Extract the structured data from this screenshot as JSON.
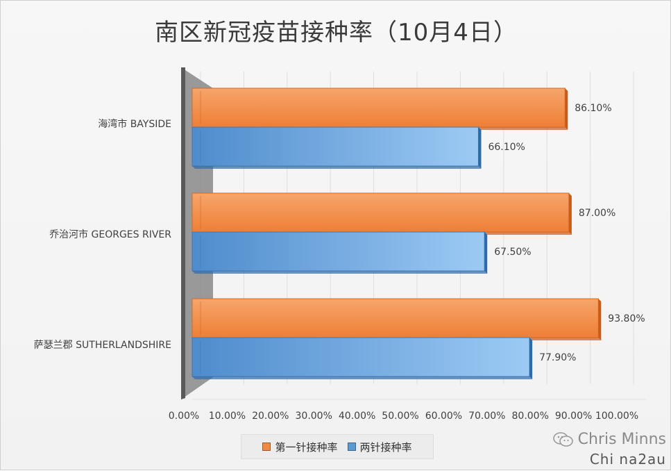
{
  "chart_data": {
    "type": "bar",
    "orientation": "horizontal",
    "title": "南区新冠疫苗接种率（10月4日）",
    "categories": [
      "海湾市 BAYSIDE",
      "乔治河市 GEORGES RIVER",
      "萨瑟兰郡 SUTHERLANDSHIRE"
    ],
    "series": [
      {
        "name": "第一针接种率",
        "values": [
          86.1,
          87.0,
          93.8
        ],
        "labels": [
          "86.10%",
          "87.00%",
          "93.80%"
        ],
        "color": "#f08a43"
      },
      {
        "name": "两针接种率",
        "values": [
          66.1,
          67.5,
          77.9
        ],
        "labels": [
          "66.10%",
          "67.50%",
          "77.90%"
        ],
        "color": "#5b9bd5"
      }
    ],
    "xlim": [
      0,
      100
    ],
    "x_ticks": [
      "0.00%",
      "10.00%",
      "20.00%",
      "30.00%",
      "40.00%",
      "50.00%",
      "60.00%",
      "70.00%",
      "80.00%",
      "90.00%",
      "100.00%"
    ],
    "grid": true,
    "legend_position": "bottom",
    "style": "3d"
  },
  "watermark": {
    "name": "Chris Minns",
    "sub": "Chi na2au",
    "icon": "wechat-icon"
  }
}
